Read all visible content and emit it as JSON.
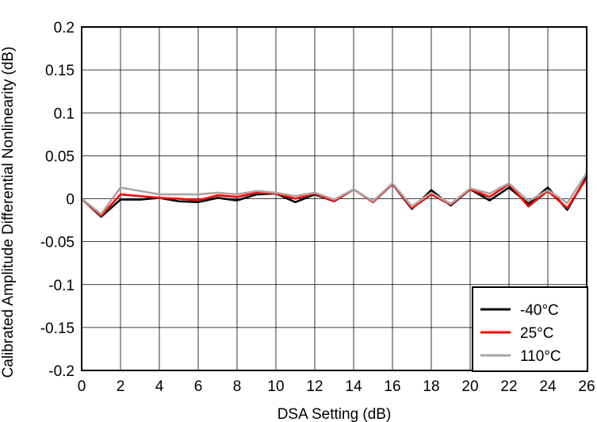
{
  "chart_data": {
    "type": "line",
    "title": "",
    "xlabel": "DSA Setting (dB)",
    "ylabel": "Calibrated Amplitude Differential Nonlinearity (dB)",
    "xlim": [
      0,
      26
    ],
    "ylim": [
      -0.2,
      0.2
    ],
    "x_ticks": [
      "0",
      "2",
      "4",
      "6",
      "8",
      "10",
      "12",
      "14",
      "16",
      "18",
      "20",
      "22",
      "24",
      "26"
    ],
    "y_ticks": [
      "0.2",
      "0.15",
      "0.1",
      "0.05",
      "0",
      "-0.05",
      "-0.1",
      "-0.15",
      "-0.2"
    ],
    "grid": true,
    "legend_position": "bottom-right",
    "x": [
      0,
      1,
      2,
      3,
      4,
      5,
      6,
      7,
      8,
      9,
      10,
      11,
      12,
      13,
      14,
      15,
      16,
      17,
      18,
      19,
      20,
      21,
      22,
      23,
      24,
      25,
      26
    ],
    "series": [
      {
        "name": "-40°C",
        "color": "#000000",
        "values": [
          0,
          -0.021,
          -0.001,
          -0.001,
          0.001,
          -0.003,
          -0.004,
          0.001,
          -0.002,
          0.005,
          0.006,
          -0.004,
          0.005,
          -0.003,
          0.011,
          -0.004,
          0.017,
          -0.012,
          0.01,
          -0.008,
          0.011,
          -0.002,
          0.013,
          -0.006,
          0.013,
          -0.013,
          0.026
        ]
      },
      {
        "name": "25°C",
        "color": "#ff0000",
        "values": [
          0,
          -0.02,
          0.005,
          0.003,
          0.001,
          0.0,
          -0.002,
          0.004,
          0.002,
          0.007,
          0.006,
          0.0,
          0.006,
          -0.003,
          0.011,
          -0.004,
          0.017,
          -0.011,
          0.005,
          -0.007,
          0.011,
          0.002,
          0.017,
          -0.009,
          0.009,
          -0.011,
          0.024
        ]
      },
      {
        "name": "110°C",
        "color": "#a6a6a6",
        "values": [
          0,
          -0.018,
          0.013,
          0.009,
          0.005,
          0.005,
          0.005,
          0.007,
          0.005,
          0.009,
          0.007,
          0.003,
          0.007,
          -0.001,
          0.011,
          -0.003,
          0.018,
          -0.009,
          0.007,
          -0.006,
          0.012,
          0.006,
          0.018,
          -0.003,
          0.01,
          -0.005,
          0.03
        ]
      }
    ]
  }
}
